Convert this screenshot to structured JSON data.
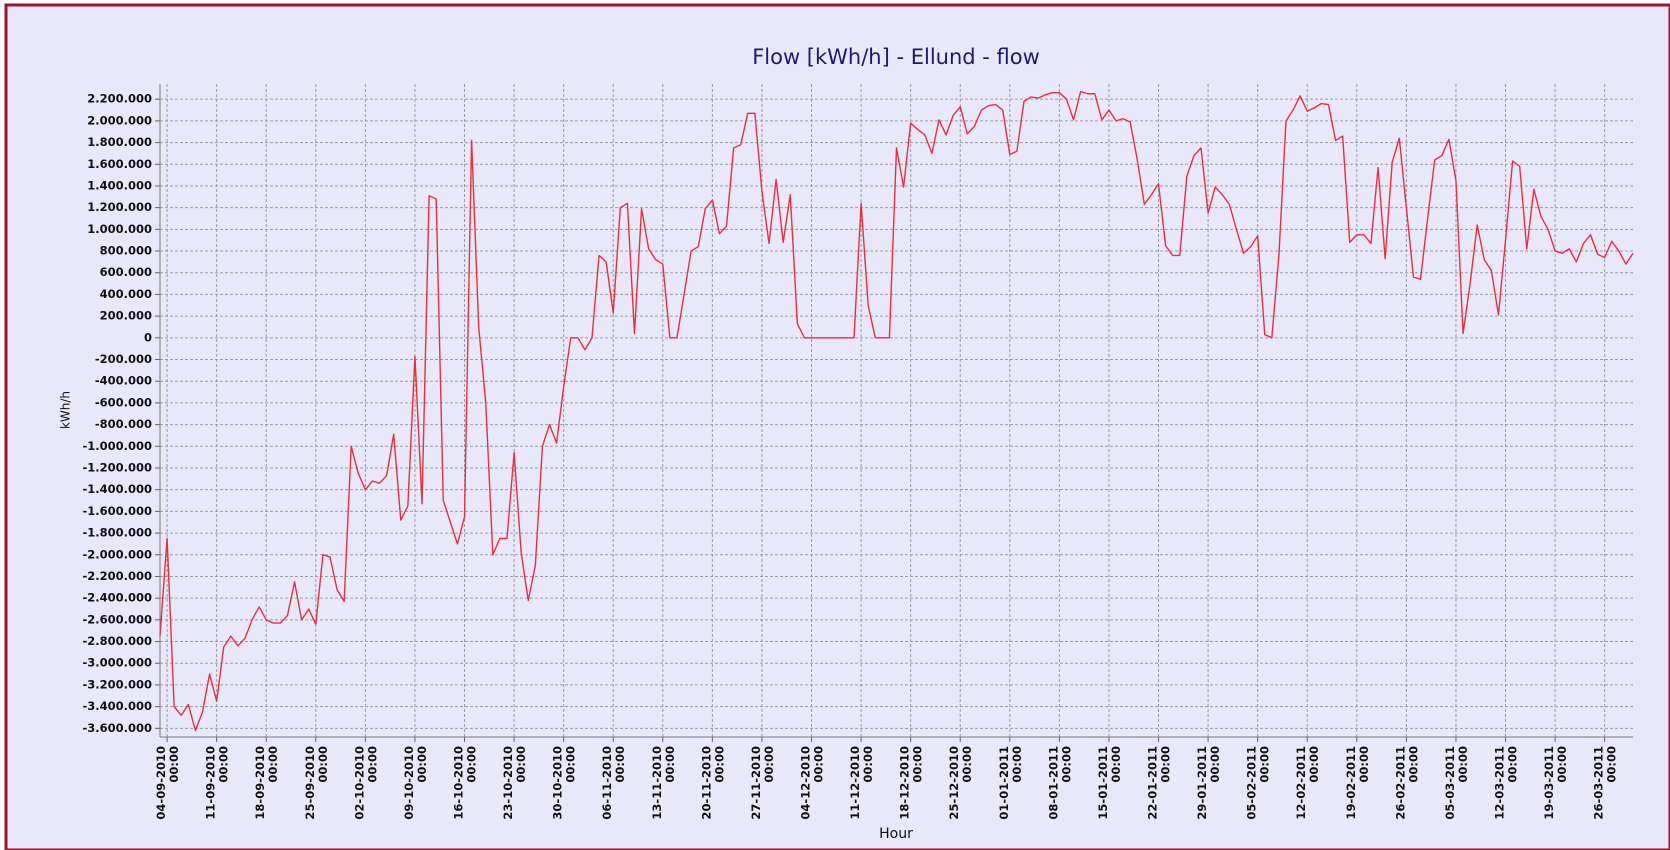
{
  "chart_data": {
    "type": "line",
    "title": "Flow [kWh/h] - Ellund - flow",
    "x_label": "Hour",
    "y_label": "kWh/h",
    "color": "#e8303a",
    "grid": true,
    "x": [
      "2010-09-03",
      "2010-09-04",
      "2010-09-05",
      "2010-09-06",
      "2010-09-07",
      "2010-09-08",
      "2010-09-09",
      "2010-09-10",
      "2010-09-11",
      "2010-09-12",
      "2010-09-13",
      "2010-09-14",
      "2010-09-15",
      "2010-09-16",
      "2010-09-17",
      "2010-09-18",
      "2010-09-19",
      "2010-09-20",
      "2010-09-21",
      "2010-09-22",
      "2010-09-23",
      "2010-09-24",
      "2010-09-25",
      "2010-09-26",
      "2010-09-27",
      "2010-09-28",
      "2010-09-29",
      "2010-09-30",
      "2010-10-01",
      "2010-10-02",
      "2010-10-03",
      "2010-10-04",
      "2010-10-05",
      "2010-10-06",
      "2010-10-07",
      "2010-10-08",
      "2010-10-09",
      "2010-10-10",
      "2010-10-11",
      "2010-10-12",
      "2010-10-13",
      "2010-10-14",
      "2010-10-15",
      "2010-10-16",
      "2010-10-17",
      "2010-10-18",
      "2010-10-19",
      "2010-10-20",
      "2010-10-21",
      "2010-10-22",
      "2010-10-23",
      "2010-10-24",
      "2010-10-25",
      "2010-10-26",
      "2010-10-27",
      "2010-10-28",
      "2010-10-29",
      "2010-10-30",
      "2010-10-31",
      "2010-11-01",
      "2010-11-02",
      "2010-11-03",
      "2010-11-04",
      "2010-11-05",
      "2010-11-06",
      "2010-11-07",
      "2010-11-08",
      "2010-11-09",
      "2010-11-10",
      "2010-11-11",
      "2010-11-12",
      "2010-11-13",
      "2010-11-14",
      "2010-11-15",
      "2010-11-16",
      "2010-11-17",
      "2010-11-18",
      "2010-11-19",
      "2010-11-20",
      "2010-11-21",
      "2010-11-22",
      "2010-11-23",
      "2010-11-24",
      "2010-11-25",
      "2010-11-26",
      "2010-11-27",
      "2010-11-28",
      "2010-11-29",
      "2010-11-30",
      "2010-12-01",
      "2010-12-02",
      "2010-12-03",
      "2010-12-04",
      "2010-12-05",
      "2010-12-06",
      "2010-12-07",
      "2010-12-08",
      "2010-12-09",
      "2010-12-10",
      "2010-12-11",
      "2010-12-12",
      "2010-12-13",
      "2010-12-14",
      "2010-12-15",
      "2010-12-16",
      "2010-12-17",
      "2010-12-18",
      "2010-12-19",
      "2010-12-20",
      "2010-12-21",
      "2010-12-22",
      "2010-12-23",
      "2010-12-24",
      "2010-12-25",
      "2010-12-26",
      "2010-12-27",
      "2010-12-28",
      "2010-12-29",
      "2010-12-30",
      "2010-12-31",
      "2011-01-01",
      "2011-01-02",
      "2011-01-03",
      "2011-01-04",
      "2011-01-05",
      "2011-01-06",
      "2011-01-07",
      "2011-01-08",
      "2011-01-09",
      "2011-01-10",
      "2011-01-11",
      "2011-01-12",
      "2011-01-13",
      "2011-01-14",
      "2011-01-15",
      "2011-01-16",
      "2011-01-17",
      "2011-01-18",
      "2011-01-19",
      "2011-01-20",
      "2011-01-21",
      "2011-01-22",
      "2011-01-23",
      "2011-01-24",
      "2011-01-25",
      "2011-01-26",
      "2011-01-27",
      "2011-01-28",
      "2011-01-29",
      "2011-01-30",
      "2011-01-31",
      "2011-02-01",
      "2011-02-02",
      "2011-02-03",
      "2011-02-04",
      "2011-02-05",
      "2011-02-06",
      "2011-02-07",
      "2011-02-08",
      "2011-02-09",
      "2011-02-10",
      "2011-02-11",
      "2011-02-12",
      "2011-02-13",
      "2011-02-14",
      "2011-02-15",
      "2011-02-16",
      "2011-02-17",
      "2011-02-18",
      "2011-02-19",
      "2011-02-20",
      "2011-02-21",
      "2011-02-22",
      "2011-02-23",
      "2011-02-24",
      "2011-02-25",
      "2011-02-26",
      "2011-02-27",
      "2011-02-28",
      "2011-03-01",
      "2011-03-02",
      "2011-03-03",
      "2011-03-04",
      "2011-03-05",
      "2011-03-06",
      "2011-03-07",
      "2011-03-08",
      "2011-03-09",
      "2011-03-10",
      "2011-03-11",
      "2011-03-12",
      "2011-03-13",
      "2011-03-14",
      "2011-03-15",
      "2011-03-16",
      "2011-03-17",
      "2011-03-18",
      "2011-03-19",
      "2011-03-20",
      "2011-03-21",
      "2011-03-22",
      "2011-03-23",
      "2011-03-24",
      "2011-03-25",
      "2011-03-26",
      "2011-03-27",
      "2011-03-28",
      "2011-03-29",
      "2011-03-30"
    ],
    "values": [
      -2750000,
      -1850000,
      -3400000,
      -3480000,
      -3380000,
      -3620000,
      -3450000,
      -3100000,
      -3350000,
      -2850000,
      -2750000,
      -2840000,
      -2770000,
      -2600000,
      -2480000,
      -2600000,
      -2630000,
      -2630000,
      -2560000,
      -2250000,
      -2600000,
      -2500000,
      -2640000,
      -2000000,
      -2020000,
      -2320000,
      -2430000,
      -1000000,
      -1250000,
      -1400000,
      -1320000,
      -1340000,
      -1270000,
      -890000,
      -1680000,
      -1550000,
      -170000,
      -1530000,
      1310000,
      1280000,
      -1500000,
      -1700000,
      -1900000,
      -1650000,
      1820000,
      100000,
      -600000,
      -2000000,
      -1850000,
      -1850000,
      -1060000,
      -1980000,
      -2420000,
      -2100000,
      -1000000,
      -800000,
      -970000,
      -450000,
      0,
      0,
      -110000,
      0,
      760000,
      700000,
      230000,
      1200000,
      1240000,
      40000,
      1190000,
      820000,
      720000,
      680000,
      0,
      0,
      400000,
      800000,
      840000,
      1190000,
      1270000,
      960000,
      1030000,
      1750000,
      1780000,
      2070000,
      2070000,
      1350000,
      870000,
      1460000,
      880000,
      1320000,
      130000,
      0,
      0,
      0,
      0,
      0,
      0,
      0,
      0,
      1240000,
      300000,
      0,
      0,
      0,
      1750000,
      1390000,
      1980000,
      1920000,
      1870000,
      1700000,
      2010000,
      1870000,
      2050000,
      2130000,
      1880000,
      1950000,
      2100000,
      2140000,
      2150000,
      2100000,
      1690000,
      1720000,
      2180000,
      2220000,
      2210000,
      2240000,
      2260000,
      2260000,
      2200000,
      2010000,
      2270000,
      2250000,
      2250000,
      2010000,
      2100000,
      2000000,
      2020000,
      1990000,
      1640000,
      1230000,
      1320000,
      1420000,
      850000,
      760000,
      760000,
      1490000,
      1680000,
      1750000,
      1150000,
      1390000,
      1320000,
      1230000,
      1000000,
      780000,
      840000,
      940000,
      30000,
      0,
      760000,
      2000000,
      2100000,
      2230000,
      2090000,
      2120000,
      2160000,
      2150000,
      1820000,
      1860000,
      880000,
      950000,
      950000,
      870000,
      1570000,
      730000,
      1620000,
      1840000,
      1200000,
      560000,
      540000,
      1100000,
      1640000,
      1680000,
      1830000,
      1450000,
      40000,
      500000,
      1040000,
      720000,
      620000,
      210000,
      900000,
      1630000,
      1580000,
      820000,
      1370000,
      1120000,
      1000000,
      800000,
      780000,
      820000,
      700000,
      870000,
      950000,
      770000,
      740000,
      890000,
      800000,
      680000,
      780000
    ],
    "xlim": [
      "2010-09-03",
      "2011-03-30"
    ],
    "xticks": [
      {
        "value": "2010-09-04",
        "label": "04-09-2010 00:00"
      },
      {
        "value": "2010-09-11",
        "label": "11-09-2010 00:00"
      },
      {
        "value": "2010-09-18",
        "label": "18-09-2010 00:00"
      },
      {
        "value": "2010-09-25",
        "label": "25-09-2010 00:00"
      },
      {
        "value": "2010-10-02",
        "label": "02-10-2010 00:00"
      },
      {
        "value": "2010-10-09",
        "label": "09-10-2010 00:00"
      },
      {
        "value": "2010-10-16",
        "label": "16-10-2010 00:00"
      },
      {
        "value": "2010-10-23",
        "label": "23-10-2010 00:00"
      },
      {
        "value": "2010-10-30",
        "label": "30-10-2010 00:00"
      },
      {
        "value": "2010-11-06",
        "label": "06-11-2010 00:00"
      },
      {
        "value": "2010-11-13",
        "label": "13-11-2010 00:00"
      },
      {
        "value": "2010-11-20",
        "label": "20-11-2010 00:00"
      },
      {
        "value": "2010-11-27",
        "label": "27-11-2010 00:00"
      },
      {
        "value": "2010-12-04",
        "label": "04-12-2010 00:00"
      },
      {
        "value": "2010-12-11",
        "label": "11-12-2010 00:00"
      },
      {
        "value": "2010-12-18",
        "label": "18-12-2010 00:00"
      },
      {
        "value": "2010-12-25",
        "label": "25-12-2010 00:00"
      },
      {
        "value": "2011-01-01",
        "label": "01-01-2011 00:00"
      },
      {
        "value": "2011-01-08",
        "label": "08-01-2011 00:00"
      },
      {
        "value": "2011-01-15",
        "label": "15-01-2011 00:00"
      },
      {
        "value": "2011-01-22",
        "label": "22-01-2011 00:00"
      },
      {
        "value": "2011-01-29",
        "label": "29-01-2011 00:00"
      },
      {
        "value": "2011-02-05",
        "label": "05-02-2011 00:00"
      },
      {
        "value": "2011-02-12",
        "label": "12-02-2011 00:00"
      },
      {
        "value": "2011-02-19",
        "label": "19-02-2011 00:00"
      },
      {
        "value": "2011-02-26",
        "label": "26-02-2011 00:00"
      },
      {
        "value": "2011-03-05",
        "label": "05-03-2011 00:00"
      },
      {
        "value": "2011-03-12",
        "label": "12-03-2011 00:00"
      },
      {
        "value": "2011-03-19",
        "label": "19-03-2011 00:00"
      },
      {
        "value": "2011-03-26",
        "label": "26-03-2011 00:00"
      }
    ],
    "ylim": [
      -3680000,
      2340000
    ],
    "yticks": [
      {
        "value": 2200000,
        "label": "2.200.000"
      },
      {
        "value": 2000000,
        "label": "2.000.000"
      },
      {
        "value": 1800000,
        "label": "1.800.000"
      },
      {
        "value": 1600000,
        "label": "1.600.000"
      },
      {
        "value": 1400000,
        "label": "1.400.000"
      },
      {
        "value": 1200000,
        "label": "1.200.000"
      },
      {
        "value": 1000000,
        "label": "1.000.000"
      },
      {
        "value": 800000,
        "label": "800.000"
      },
      {
        "value": 600000,
        "label": "600.000"
      },
      {
        "value": 400000,
        "label": "400.000"
      },
      {
        "value": 200000,
        "label": "200.000"
      },
      0,
      {
        "value": -200000,
        "label": "-200.000"
      },
      {
        "value": -400000,
        "label": "-400.000"
      },
      {
        "value": -600000,
        "label": "-600.000"
      },
      {
        "value": -800000,
        "label": "-800.000"
      },
      {
        "value": -1000000,
        "label": "-1.000.000"
      },
      {
        "value": -1200000,
        "label": "-1.200.000"
      },
      {
        "value": -1400000,
        "label": "-1.400.000"
      },
      {
        "value": -1600000,
        "label": "-1.600.000"
      },
      {
        "value": -1800000,
        "label": "-1.800.000"
      },
      {
        "value": -2000000,
        "label": "-2.000.000"
      },
      {
        "value": -2200000,
        "label": "-2.200.000"
      },
      {
        "value": -2400000,
        "label": "-2.400.000"
      },
      {
        "value": -2600000,
        "label": "-2.600.000"
      },
      {
        "value": -2800000,
        "label": "-2.800.000"
      },
      {
        "value": -3000000,
        "label": "-3.000.000"
      },
      {
        "value": -3200000,
        "label": "-3.200.000"
      },
      {
        "value": -3400000,
        "label": "-3.400.000"
      },
      {
        "value": -3600000,
        "label": "-3.600.000"
      }
    ]
  }
}
